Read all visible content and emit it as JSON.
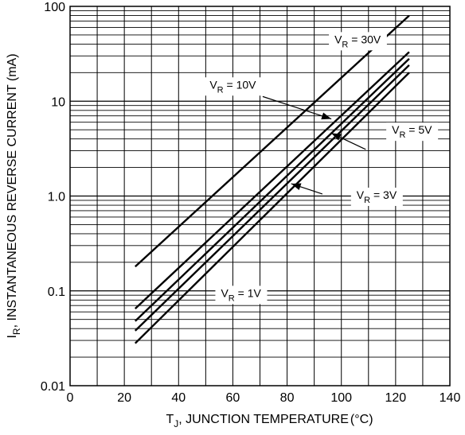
{
  "chart_data": {
    "type": "line",
    "title": "",
    "xlabel": {
      "main": "T",
      "sub": "J",
      "rest": ", JUNCTION TEMPERATURE",
      "unit": "(°C)"
    },
    "ylabel": {
      "main": "I",
      "sub": "R",
      "rest": ", INSTANTANEOUS REVERSE CURRENT (mA)"
    },
    "x_scale": "linear",
    "y_scale": "log",
    "xlim": [
      0,
      140
    ],
    "ylim": [
      0.01,
      100
    ],
    "x_ticks": [
      0,
      20,
      40,
      60,
      80,
      100,
      120,
      140
    ],
    "x_tick_labels": [
      "0",
      "20",
      "40",
      "60",
      "80",
      "100",
      "120",
      "140"
    ],
    "y_ticks": [
      0.01,
      0.1,
      1.0,
      10,
      100
    ],
    "y_tick_labels": [
      "0.01",
      "0.1",
      "1.0",
      "10",
      "100"
    ],
    "grid": true,
    "series": [
      {
        "name": "30V",
        "x": [
          24,
          125
        ],
        "y": [
          0.18,
          80
        ]
      },
      {
        "name": "10V",
        "x": [
          24,
          125
        ],
        "y": [
          0.065,
          33
        ]
      },
      {
        "name": "5V",
        "x": [
          24,
          125
        ],
        "y": [
          0.048,
          28
        ]
      },
      {
        "name": "3V",
        "x": [
          24,
          125
        ],
        "y": [
          0.038,
          24
        ]
      },
      {
        "name": "1V",
        "x": [
          24,
          125
        ],
        "y": [
          0.028,
          20
        ]
      }
    ],
    "annotations": [
      {
        "main": "V",
        "sub": "R",
        "value": " = 30V",
        "x": 106,
        "y": 45
      },
      {
        "main": "V",
        "sub": "R",
        "value": " = 10V",
        "x": 60,
        "y": 15
      },
      {
        "main": "V",
        "sub": "R",
        "value": " = 5V",
        "x": 126,
        "y": 5
      },
      {
        "main": "V",
        "sub": "R",
        "value": " = 3V",
        "x": 113,
        "y": 1.03
      },
      {
        "main": "V",
        "sub": "R",
        "value": " = 1V",
        "x": 63,
        "y": 0.095
      }
    ],
    "arrows": [
      {
        "from": [
          71,
          11.2
        ],
        "to": [
          96.3,
          6.5
        ]
      },
      {
        "from": [
          109,
          3.1
        ],
        "to": [
          96.3,
          4.6
        ]
      },
      {
        "from": [
          93,
          1.05
        ],
        "to": [
          81.5,
          1.35
        ]
      }
    ]
  }
}
